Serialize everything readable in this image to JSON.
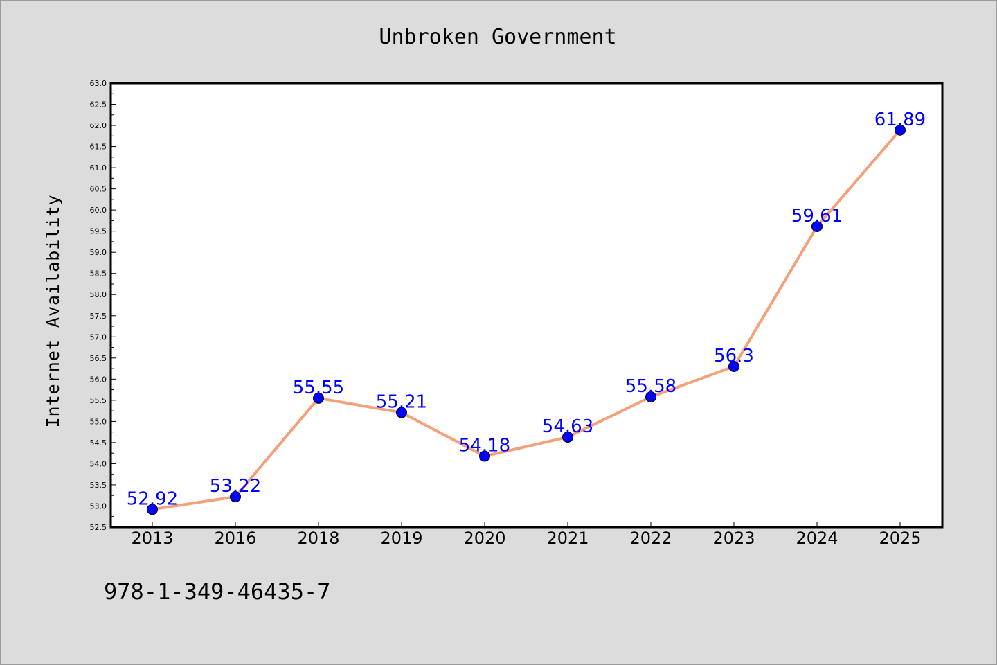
{
  "chart_data": {
    "type": "line",
    "title": "Unbroken Government",
    "xlabel": "",
    "ylabel": "Internet Availability",
    "categories": [
      "2013",
      "2016",
      "2018",
      "2019",
      "2020",
      "2021",
      "2022",
      "2023",
      "2024",
      "2025"
    ],
    "values": [
      52.92,
      53.22,
      55.55,
      55.21,
      54.18,
      54.63,
      55.58,
      56.3,
      59.61,
      61.89
    ],
    "data_labels": [
      "52.92",
      "53.22",
      "55.55",
      "55.21",
      "54.18",
      "54.63",
      "55.58",
      "56.3",
      "59.61",
      "61.89"
    ],
    "ylim": [
      52.5,
      63.0
    ],
    "ytick_step": 0.5,
    "grid": false,
    "line_color": "#f4a07a",
    "marker_color": "#0000ff",
    "label_color": "#0000ff"
  },
  "footer": {
    "isbn": "978-1-349-46435-7"
  }
}
